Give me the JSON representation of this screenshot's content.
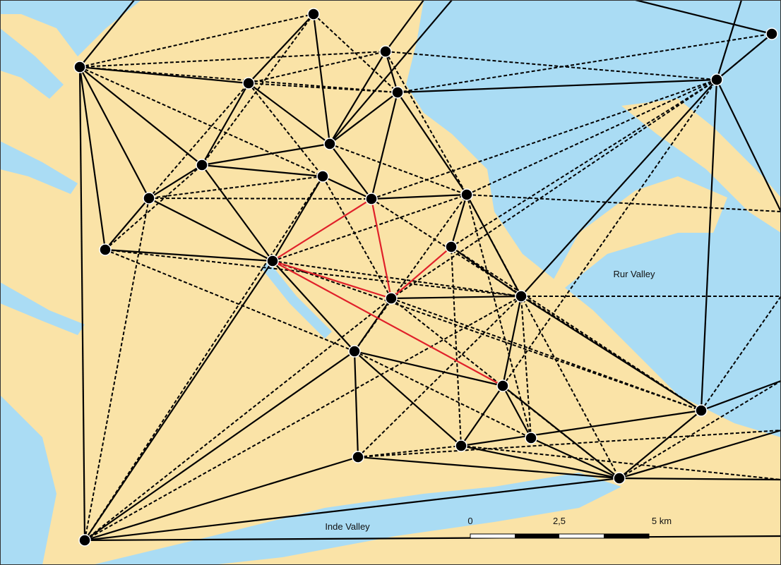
{
  "labels": [
    "Rur Valley",
    "Inde Valley"
  ],
  "scale_bar": {
    "labels": [
      "0",
      "2,5",
      "5 km"
    ]
  }
}
